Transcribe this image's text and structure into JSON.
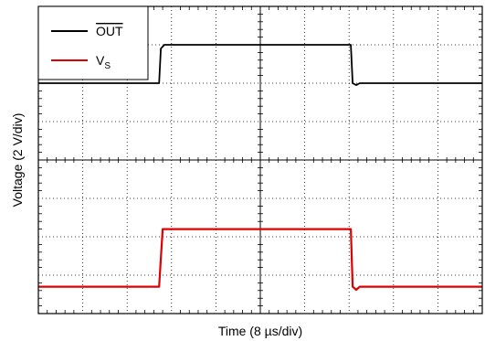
{
  "chart_data": {
    "type": "line",
    "title": "",
    "xlabel": "Time (8 µs/div)",
    "ylabel": "Voltage (2 V/div)",
    "x_divisions": 10,
    "y_divisions": 8,
    "grid": true,
    "legend_position": "top-left",
    "x_unit_per_div": 8,
    "y_unit_per_div": 2,
    "series": [
      {
        "name": "OUT",
        "name_overline": true,
        "color": "#000000",
        "points": [
          [
            0,
            6.0
          ],
          [
            3.4,
            6.0
          ],
          [
            3.45,
            6.9
          ],
          [
            3.55,
            7.0
          ],
          [
            8.8,
            7.0
          ],
          [
            8.85,
            6.0
          ],
          [
            8.95,
            5.95
          ],
          [
            9.05,
            6.0
          ],
          [
            12.5,
            6.0
          ]
        ]
      },
      {
        "name": "VS",
        "name_main": "V",
        "name_sub": "S",
        "color": "#e00000",
        "points": [
          [
            0,
            0.7
          ],
          [
            3.4,
            0.7
          ],
          [
            3.5,
            2.2
          ],
          [
            8.8,
            2.2
          ],
          [
            8.85,
            0.7
          ],
          [
            8.95,
            0.62
          ],
          [
            9.05,
            0.7
          ],
          [
            12.5,
            0.7
          ]
        ]
      }
    ]
  }
}
